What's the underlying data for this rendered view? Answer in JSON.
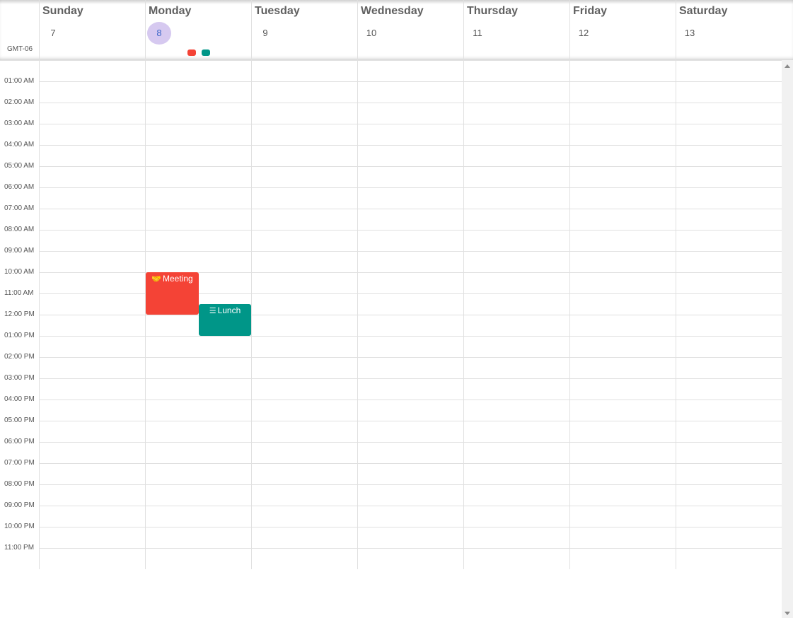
{
  "timezone": "GMT-06",
  "days": [
    {
      "name": "Sunday",
      "date": "7",
      "today": false
    },
    {
      "name": "Monday",
      "date": "8",
      "today": true
    },
    {
      "name": "Tuesday",
      "date": "9",
      "today": false
    },
    {
      "name": "Wednesday",
      "date": "10",
      "today": false
    },
    {
      "name": "Thursday",
      "date": "11",
      "today": false
    },
    {
      "name": "Friday",
      "date": "12",
      "today": false
    },
    {
      "name": "Saturday",
      "date": "13",
      "today": false
    }
  ],
  "hours": [
    "01:00 AM",
    "02:00 AM",
    "03:00 AM",
    "04:00 AM",
    "05:00 AM",
    "06:00 AM",
    "07:00 AM",
    "08:00 AM",
    "09:00 AM",
    "10:00 AM",
    "11:00 AM",
    "12:00 PM",
    "01:00 PM",
    "02:00 PM",
    "03:00 PM",
    "04:00 PM",
    "05:00 PM",
    "06:00 PM",
    "07:00 PM",
    "08:00 PM",
    "09:00 PM",
    "10:00 PM",
    "11:00 PM"
  ],
  "events": [
    {
      "title": "Meeting",
      "icon": "handshake-icon",
      "day": "Monday",
      "color": "#f44336"
    },
    {
      "title": "Lunch",
      "icon": "burger-icon",
      "day": "Monday",
      "color": "#009688"
    }
  ],
  "colors": {
    "meeting": "#f44336",
    "lunch": "#009688",
    "today_bg": "#d6c9f0",
    "today_text": "#3f67c9"
  }
}
